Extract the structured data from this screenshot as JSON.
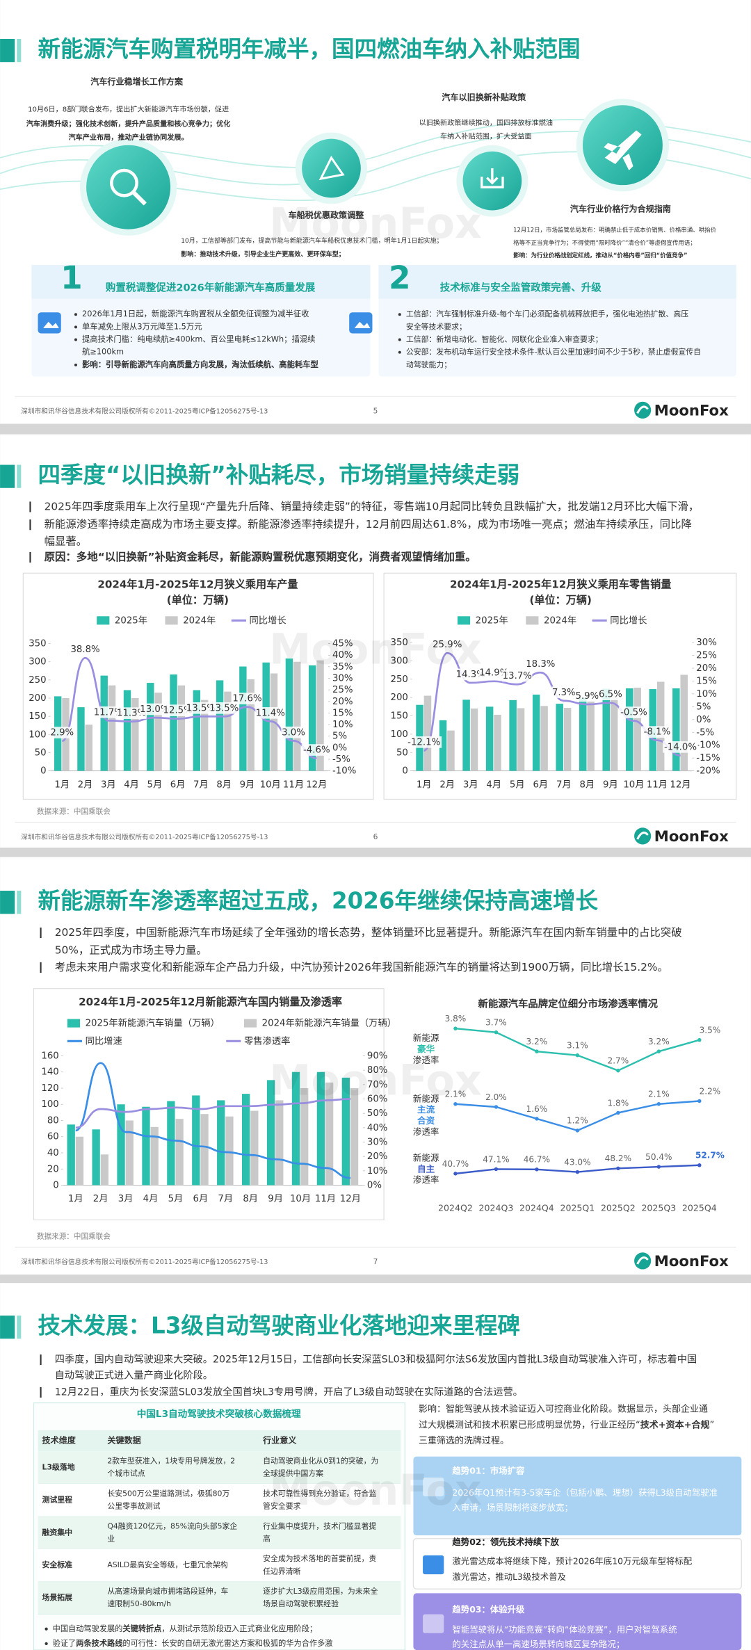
{
  "watermark": "MoonFox",
  "slides": [
    {
      "title": "新能源汽车购置税明年减半，国四燃油车纳入补贴范围",
      "policies": [
        {
          "tag": "汽车行业稳增长工作方案",
          "lines": [
            "10月6日，8部门联合发布，提出扩大新能源汽车市场份额，促进",
            "汽车消费升级；强化技术创新，提升产品质量和核心竞争力；优化",
            "汽车产业布局，推动产业链协同发展。"
          ]
        },
        {
          "tag": "汽车以旧换新补贴政策",
          "lines": [
            "以旧换新政策继续推动，国四排放标准燃油",
            "车纳入补贴范围，扩大受益面"
          ]
        },
        {
          "tag": "车船税优惠政策调整",
          "lines": [
            "10月，工信部等部门发布，提高节能与新能源汽车车船税优惠技术门槛，明年1月1日起实施；",
            "影响：推动技术升级，引导企业生产更高效、更环保车型；"
          ]
        },
        {
          "tag": "汽车行业价格行为合规指南",
          "lines": [
            "12月12日，市场监管总局发布：明确禁止低于成本价销售、价格串通、哄抬价",
            "格等不正当竞争行为；不得使用“限时降价”“清仓价”等虚假宣传用语；",
            "影响：为行业价格战划定红线，推动从“价格内卷”回归“价值竞争”"
          ]
        }
      ],
      "boxes": [
        {
          "num": 1,
          "heading": "购置税调整促进2026年新能源汽车高质量发展",
          "lines": [
            "2026年1月1日起，新能源汽车购置税从全额免征调整为减半征收",
            "单车减免上限从3万元降至1.5万元",
            "提高技术门槛：纯电续航≥400km、百公里电耗≤12kWh；插混续",
            "航≥100km",
            "影响：引导新能源汽车向高质量方向发展，淘汰低续航、高能耗车型"
          ]
        },
        {
          "num": 2,
          "heading": "技术标准与安全监管政策完善、升级",
          "lines": [
            "工信部：汽车强制标准升级-每个车门必须配备机械释放把手，强化电池热扩散、高压",
            "安全等技术要求；",
            "工信部：新增电动化、智能化、网联化企业准入审查要求；",
            "公安部：发布机动车运行安全技术条件-默认百公里加速时间不少于5秒，禁止虚假宣传自",
            "动驾驶能力；"
          ]
        }
      ],
      "footer": "深圳市和讯华谷信息技术有限公司版权所有©2011-2025粤ICP备12056275号-13",
      "page": 5,
      "logo": "MoonFox"
    },
    {
      "title": "四季度“以旧换新”补贴耗尽，市场销量持续走弱",
      "bullets": [
        "2025年四季度乘用车上次行呈现“产量先升后降、销量持续走弱”的特征，零售端10月起同比转负且跌幅扩大，批发端12月环比大幅下滑，",
        "新能源渗透率持续走高成为市场主要支撑。新能源渗透率持续提升，12月前四周达61.8%，成为市场唯一亮点；燃油车持续承压，同比降",
        "幅显著。"
      ],
      "reason": "原因：多地“以旧换新”补贴资金耗尽，新能源购置税优惠预期变化，消费者观望情绪加重。",
      "charts": [
        {
          "type": "bar_line",
          "title": "2024年1月-2025年12月狭义乘用车产量",
          "subtitle": "(单位：万辆)",
          "categories": [
            "1月",
            "2月",
            "3月",
            "4月",
            "5月",
            "6月",
            "7月",
            "8月",
            "9月",
            "10月",
            "11月",
            "12月"
          ],
          "series": [
            {
              "name": "2025年",
              "color": "#2bbfae",
              "values": [
                205,
                175,
                262,
                222,
                242,
                265,
                222,
                249,
                287,
                298,
                309,
                290
              ]
            },
            {
              "name": "2024年",
              "color": "#c9c9c9",
              "values": [
                200,
                127,
                235,
                200,
                215,
                235,
                195,
                218,
                252,
                268,
                300,
                304
              ]
            },
            {
              "name": "同比增长",
              "color": "#9a8ee0",
              "axis": "y2",
              "values": [
                2.9,
                38.8,
                11.7,
                11.3,
                13.0,
                12.5,
                13.5,
                13.5,
                17.6,
                11.4,
                3.0,
                -4.6
              ],
              "value_labels": [
                "2.9%",
                "38.8%",
                "11.7%",
                "11.3%",
                "13.0%",
                "12.5%",
                "13.5%",
                "13.5%",
                "17.6%",
                "11.4%",
                "3.0%",
                "-4.6%"
              ]
            }
          ],
          "ylim": [
            0,
            350
          ],
          "yticks": [
            0,
            50,
            100,
            150,
            200,
            250,
            300,
            350
          ],
          "y2lim": [
            -10,
            45
          ],
          "y2ticks": [
            {
              "value": -10,
              "label": "-10%"
            },
            {
              "value": -5,
              "label": "-5%"
            },
            {
              "value": 0,
              "label": "0%"
            },
            {
              "value": 5,
              "label": "5%"
            },
            {
              "value": 10,
              "label": "10%"
            },
            {
              "value": 15,
              "label": "15%"
            },
            {
              "value": 20,
              "label": "20%"
            },
            {
              "value": 25,
              "label": "25%"
            },
            {
              "value": 30,
              "label": "30%"
            },
            {
              "value": 35,
              "label": "35%"
            },
            {
              "value": 40,
              "label": "40%"
            },
            {
              "value": 45,
              "label": "45%"
            }
          ]
        },
        {
          "type": "bar_line",
          "title": "2024年1月-2025年12月狭义乘用车零售销量",
          "subtitle": "(单位：万辆)",
          "categories": [
            "1月",
            "2月",
            "3月",
            "4月",
            "5月",
            "6月",
            "7月",
            "8月",
            "9月",
            "10月",
            "11月",
            "12月"
          ],
          "series": [
            {
              "name": "2025年",
              "color": "#2bbfae",
              "values": [
                180,
                138,
                194,
                175,
                193,
                208,
                183,
                199,
                224,
                225,
                223,
                225
              ]
            },
            {
              "name": "2024年",
              "color": "#c9c9c9",
              "values": [
                205,
                110,
                170,
                153,
                171,
                177,
                172,
                190,
                210,
                227,
                243,
                262
              ]
            },
            {
              "name": "同比增长",
              "color": "#9a8ee0",
              "axis": "y2",
              "values": [
                -12.1,
                25.9,
                14.3,
                14.9,
                13.7,
                18.3,
                7.3,
                5.9,
                6.5,
                -0.5,
                -8.1,
                -14.0
              ],
              "value_labels": [
                "-12.1%",
                "25.9%",
                "14.3%",
                "14.9%",
                "13.7%",
                "18.3%",
                "7.3%",
                "5.9%",
                "6.5%",
                "-0.5%",
                "-8.1%",
                "-14.0%"
              ]
            }
          ],
          "ylim": [
            0,
            350
          ],
          "yticks": [
            0,
            50,
            100,
            150,
            200,
            250,
            300,
            350
          ],
          "y2lim": [
            -20,
            30
          ],
          "y2ticks": [
            {
              "value": -20,
              "label": "-20%"
            },
            {
              "value": -15,
              "label": "-15%"
            },
            {
              "value": -10,
              "label": "-10%"
            },
            {
              "value": -5,
              "label": "-5%"
            },
            {
              "value": 0,
              "label": "0%"
            },
            {
              "value": 5,
              "label": "5%"
            },
            {
              "value": 10,
              "label": "10%"
            },
            {
              "value": 15,
              "label": "15%"
            },
            {
              "value": 20,
              "label": "20%"
            },
            {
              "value": 25,
              "label": "25%"
            },
            {
              "value": 30,
              "label": "30%"
            }
          ]
        }
      ],
      "source": "数据来源：中国乘联会",
      "footer": "深圳市和讯华谷信息技术有限公司版权所有©2011-2025粤ICP备12056275号-13",
      "page": 6,
      "logo": "MoonFox"
    },
    {
      "title": "新能源新车渗透率超过五成，2026年继续保持高速增长",
      "bullets": [
        "2025年四季度，中国新能源汽车市场延续了全年强劲的增长态势，整体销量环比显著提升。新能源汽车在国内新车销量中的占比突破",
        "50%，正式成为市场主导力量。",
        "考虑未来用户需求变化和新能源车企产品力升级，中汽协预计2026年我国新能源汽车的销量将达到1900万辆，同比增长15.2%。"
      ],
      "charts": [
        {
          "type": "bar_line",
          "title": "2024年1月-2025年12月新能源汽车国内销量及渗透率",
          "categories": [
            "1月",
            "2月",
            "3月",
            "4月",
            "5月",
            "6月",
            "7月",
            "8月",
            "9月",
            "10月",
            "11月",
            "12月"
          ],
          "series": [
            {
              "name": "2025年新能源汽车销量（万辆）",
              "color": "#2bbfae",
              "values": [
                75,
                69,
                100,
                97,
                104,
                111,
                105,
                113,
                130,
                140,
                140,
                133
              ]
            },
            {
              "name": "2024年新能源汽车销量（万辆）",
              "color": "#c9c9c9",
              "values": [
                60,
                38,
                80,
                72,
                82,
                88,
                85,
                92,
                105,
                120,
                127,
                120
              ]
            },
            {
              "name": "同比增速",
              "color": "#3a8ee6",
              "axis": "y2",
              "values": [
                38,
                85,
                37,
                34,
                31,
                27,
                23,
                21,
                18,
                15,
                12,
                5
              ]
            },
            {
              "name": "零售渗透率",
              "color": "#9a8ee0",
              "axis": "y2",
              "values": [
                40,
                53,
                51,
                53,
                54,
                53,
                55,
                55,
                56,
                57,
                59,
                60
              ]
            }
          ],
          "ylim": [
            0,
            160
          ],
          "yticks": [
            0,
            20,
            40,
            60,
            80,
            100,
            120,
            140,
            160
          ],
          "y2lim": [
            0,
            90
          ],
          "y2ticks": [
            {
              "value": 0,
              "label": "0%"
            },
            {
              "value": 10,
              "label": "10%"
            },
            {
              "value": 20,
              "label": "20%"
            },
            {
              "value": 30,
              "label": "30%"
            },
            {
              "value": 40,
              "label": "40%"
            },
            {
              "value": 50,
              "label": "50%"
            },
            {
              "value": 60,
              "label": "60%"
            },
            {
              "value": 70,
              "label": "70%"
            },
            {
              "value": 80,
              "label": "80%"
            },
            {
              "value": 90,
              "label": "90%"
            }
          ]
        },
        {
          "type": "row_lines",
          "title": "新能源汽车品牌定位细分市场渗透率情况",
          "categories": [
            "2024Q2",
            "2024Q3",
            "2024Q4",
            "2025Q1",
            "2025Q2",
            "2025Q3",
            "2025Q4"
          ],
          "series": [
            {
              "label_lines": [
                "新能源",
                "豪华",
                "渗透率"
              ],
              "color": "#2bbfae",
              "values": [
                3.8,
                3.7,
                3.2,
                3.1,
                2.7,
                3.2,
                3.5
              ],
              "value_labels": [
                "3.8%",
                "3.7%",
                "3.2%",
                "3.1%",
                "2.7%",
                "3.2%",
                "3.5%"
              ]
            },
            {
              "label_lines": [
                "新能源",
                "主流",
                "合资",
                "渗透率"
              ],
              "color": "#3a8ee6",
              "values": [
                2.1,
                2.0,
                1.6,
                1.2,
                1.8,
                2.1,
                2.2
              ],
              "value_labels": [
                "2.1%",
                "2.0%",
                "1.6%",
                "1.2%",
                "1.8%",
                "2.1%",
                "2.2%"
              ]
            },
            {
              "label_lines": [
                "新能源",
                "自主",
                "渗透率"
              ],
              "color": "#3b5bc8",
              "values": [
                40.7,
                47.1,
                46.7,
                43.0,
                48.2,
                50.4,
                52.7
              ],
              "value_labels": [
                "40.7%",
                "47.1%",
                "46.7%",
                "43.0%",
                "48.2%",
                "50.4%",
                "52.7%"
              ]
            }
          ]
        }
      ],
      "source": "数据来源：中国乘联会",
      "footer": "深圳市和讯华谷信息技术有限公司版权所有©2011-2025粤ICP备12056275号-13",
      "page": 7,
      "logo": "MoonFox"
    },
    {
      "title": "技术发展：L3级自动驾驶商业化落地迎来里程碑",
      "bullets": [
        "四季度，国内自动驾驶迎来大突破。2025年12月15日，工信部向长安深蓝SL03和极狐阿尔法S6发放国内首批L3级自动驾驶准入许可，标志着中国",
        "自动驾驶正式进入量产商业化阶段。",
        "12月22日，重庆为长安深蓝SL03发放全国首块L3专用号牌，开启了L3级自动驾驶在实际道路的合法运营。"
      ],
      "table": {
        "title": "中国L3自动驾驶技术突破核心数据梳理",
        "header": [
          "技术维度",
          "关键数据",
          "行业意义"
        ],
        "rows": [
          [
            [
              "L3级落地"
            ],
            [
              "2款车型获准入，1块专用号牌发放，2",
              "个城市试点"
            ],
            [
              "自动驾驶商业化从0到1的突破，为",
              "全球提供中国方案"
            ]
          ],
          [
            [
              "测试里程"
            ],
            [
              "长安500万公里道路测试，极狐80万",
              "公里零事故测试"
            ],
            [
              "技术可靠性得到充分验证，符合监",
              "管安全要求"
            ]
          ],
          [
            [
              "融资集中"
            ],
            [
              "Q4融资120亿元，85%流向头部5家企",
              "业"
            ],
            [
              "行业集中度提升，技术门槛显著提",
              "高"
            ]
          ],
          [
            [
              "安全标准"
            ],
            [
              "ASILD最高安全等级，七重冗余架构"
            ],
            [
              "安全成为技术落地的首要前提，责",
              "任边界清晰"
            ]
          ],
          [
            [
              "场景拓展"
            ],
            [
              "从高速场景向城市拥堵路段延伸，车",
              "速限制50-80km/h"
            ],
            [
              "逐步扩大L3级应用范围，为未来全",
              "场景自动驾驶积累经验"
            ]
          ]
        ]
      },
      "notes": [
        [
          "中国自动驾驶发展的",
          "关键转折点",
          "，从测试示范阶段迈入正式商业化应用阶段；"
        ],
        [
          "验证了",
          "两条技术路线",
          "的可行性：长安的自研无激光雷达方案和极狐的华为合作多激"
        ]
      ],
      "impact": [
        [
          "影响：智能驾驶从技术验证迈入可控商业化阶段。数据显示，头部企业通"
        ],
        [
          "过大规模测试和技术积累已形成明显优势，行业正经历“",
          "技术+资本+合规",
          "”"
        ],
        [
          "三重筛选的洗牌过程。"
        ]
      ],
      "trends": [
        {
          "heading": "趋势01：市场扩容",
          "lines": [
            "2026年Q1预计有3-5家车企（包括小鹏、理想）获得L3级自动驾驶准",
            "入审请，场景限制将逐步放宽；"
          ]
        },
        {
          "heading": "趋势02：领先技术持续下放",
          "lines": [
            "激光雷达成本将继续下降，预计2026年底10万元级车型将标配",
            "激光雷达，推动L3级技术普及"
          ]
        },
        {
          "heading": "趋势03：体验升级",
          "lines": [
            "智能驾驶将从“功能竞赛”转向“体验竞赛”，用户对智驾系统",
            "的关注点从单一高速场景转向城区复杂路况；"
          ]
        }
      ]
    }
  ]
}
